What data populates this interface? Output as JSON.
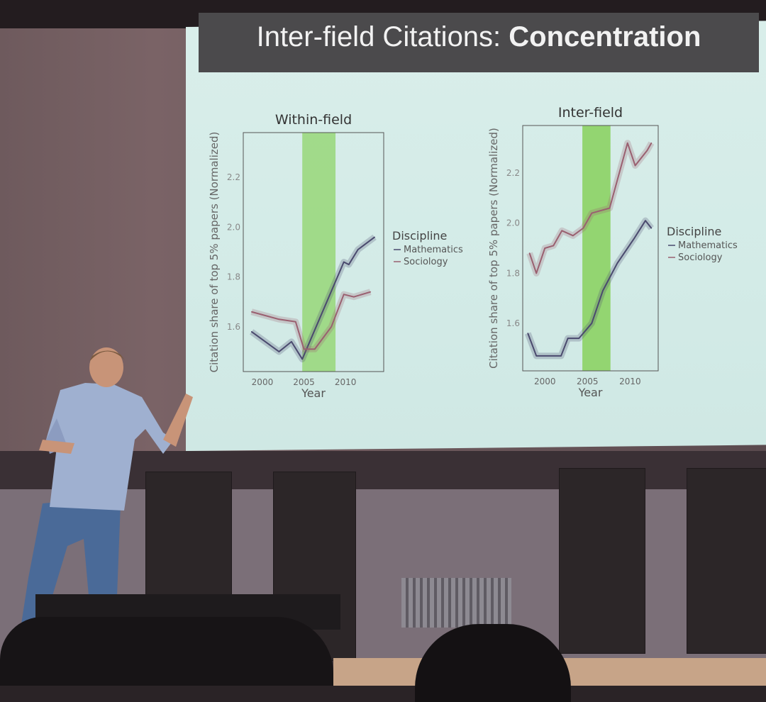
{
  "slide": {
    "title_light": "Inter-field Citations: ",
    "title_bold": "Concentration"
  },
  "colors": {
    "mathematics": "#4a4a6e",
    "sociology": "#9a6070",
    "highlight_band": "#8fd46a",
    "slide_background": "#d6ece8",
    "title_bar": "#4b4a4c"
  },
  "chart_data": [
    {
      "type": "line",
      "title": "Within-field",
      "xlabel": "Year",
      "ylabel": "Citation share of top 5% papers (Normalized)",
      "xlim": [
        1997.7,
        2014.6
      ],
      "ylim": [
        1.42,
        2.38
      ],
      "xticks": [
        "2000",
        "2005",
        "2010"
      ],
      "yticks": [
        "1.6",
        "1.8",
        "2.0",
        "2.2"
      ],
      "highlight_band": [
        2004.8,
        2008.8
      ],
      "legend_title": "Discipline",
      "legend_placement": "right",
      "grid": false,
      "series": [
        {
          "name": "Mathematics",
          "x": [
            1998.7,
            2002,
            2003.5,
            2004.8,
            2009.8,
            2010.4,
            2011.5,
            2013.5
          ],
          "y": [
            1.58,
            1.5,
            1.54,
            1.47,
            1.86,
            1.85,
            1.91,
            1.96
          ]
        },
        {
          "name": "Sociology",
          "x": [
            1998.7,
            2002,
            2004,
            2005,
            2006.3,
            2008.3,
            2009.8,
            2011,
            2013
          ],
          "y": [
            1.66,
            1.63,
            1.62,
            1.51,
            1.51,
            1.6,
            1.73,
            1.72,
            1.74
          ]
        }
      ]
    },
    {
      "type": "line",
      "title": "Inter-field",
      "xlabel": "Year",
      "ylabel": "Citation share of top 5% papers (Normalized)",
      "xlim": [
        1997.4,
        2013.3
      ],
      "ylim": [
        1.41,
        2.39
      ],
      "xticks": [
        "2000",
        "2005",
        "2010"
      ],
      "yticks": [
        "1.6",
        "1.8",
        "2.0",
        "2.2"
      ],
      "highlight_band": [
        2004.4,
        2007.7
      ],
      "legend_title": "Discipline",
      "legend_placement": "right",
      "grid": false,
      "series": [
        {
          "name": "Mathematics",
          "x": [
            1998,
            1999,
            2001.9,
            2002.7,
            2004,
            2005.5,
            2006.8,
            2008.5,
            2010.5,
            2011.8,
            2012.5
          ],
          "y": [
            1.56,
            1.47,
            1.47,
            1.54,
            1.54,
            1.6,
            1.73,
            1.84,
            1.94,
            2.01,
            1.98
          ]
        },
        {
          "name": "Sociology",
          "x": [
            1998.2,
            1999,
            2000,
            2001,
            2002,
            2003.3,
            2004.5,
            2005.5,
            2007.6,
            2009.7,
            2010.6,
            2012,
            2012.5
          ],
          "y": [
            1.88,
            1.8,
            1.9,
            1.91,
            1.97,
            1.95,
            1.98,
            2.04,
            2.06,
            2.32,
            2.23,
            2.29,
            2.32
          ]
        }
      ]
    }
  ]
}
